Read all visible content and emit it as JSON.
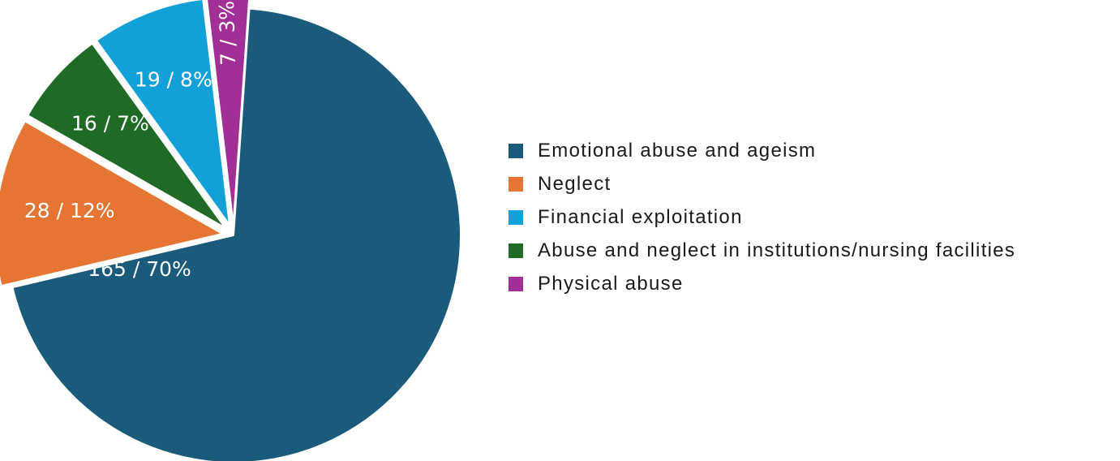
{
  "chart_data": {
    "type": "pie",
    "slices": [
      {
        "name": "Emotional abuse and ageism",
        "count": 165,
        "percent": 70,
        "label": "165 / 70%",
        "color": "#1a5a7b",
        "exploded": false
      },
      {
        "name": "Neglect",
        "count": 28,
        "percent": 12,
        "label": "28 / 12%",
        "color": "#e57532",
        "exploded": true
      },
      {
        "name": "Abuse and neglect in institutions/nursing facilities",
        "count": 16,
        "percent": 7,
        "label": "16 / 7%",
        "color": "#1f6b26",
        "exploded": true
      },
      {
        "name": "Financial exploitation",
        "count": 19,
        "percent": 8,
        "label": "19 / 8%",
        "color": "#12a0d8",
        "exploded": true
      },
      {
        "name": "Physical abuse",
        "count": 7,
        "percent": 3,
        "label": "7 / 3%",
        "color": "#a22f96",
        "exploded": true
      }
    ],
    "legend_order": [
      "Emotional abuse and ageism",
      "Neglect",
      "Financial exploitation",
      "Abuse and neglect in institutions/nursing facilities",
      "Physical abuse"
    ],
    "legend_position": "right"
  }
}
